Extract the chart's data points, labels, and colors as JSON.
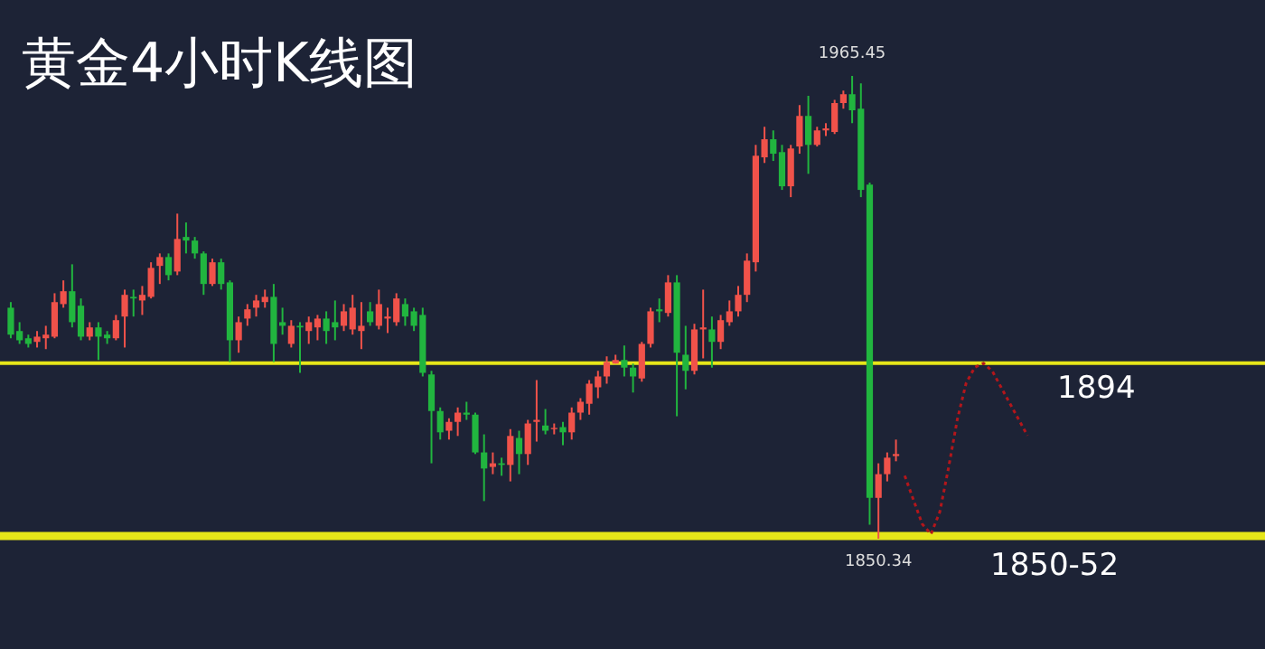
{
  "chart_data": {
    "type": "candlestick",
    "title": "黄金4小时K线图",
    "categories": [
      null,
      null,
      null,
      null,
      null,
      null,
      null,
      null,
      null,
      null,
      null,
      null,
      null,
      null,
      null,
      null,
      null,
      null,
      null,
      null,
      null,
      null,
      null,
      null,
      null,
      null,
      null,
      null,
      null,
      null,
      null,
      null,
      null,
      null,
      null,
      null,
      null,
      null,
      null,
      null,
      null,
      null,
      null,
      null,
      null,
      null,
      null,
      null,
      null,
      null,
      null,
      null,
      null,
      null,
      null,
      null,
      null,
      null,
      null,
      null,
      null,
      null,
      null,
      null,
      null,
      null,
      null,
      null,
      null,
      null,
      null,
      null,
      null,
      null,
      null,
      null,
      null,
      null,
      null,
      null,
      null,
      null,
      null,
      null,
      null,
      null,
      null,
      null,
      null,
      null,
      null,
      null,
      null,
      null,
      null,
      null,
      null,
      null,
      null,
      null,
      null,
      null,
      null,
      null,
      null,
      null,
      null,
      null,
      null,
      null,
      null,
      null,
      null,
      null,
      null,
      null,
      null
    ],
    "ohlc": [
      [
        1907.8,
        1909.2,
        1900.2,
        1901.1
      ],
      [
        1902.0,
        1904.2,
        1898.8,
        1899.7
      ],
      [
        1900.2,
        1901.1,
        1897.9,
        1898.8
      ],
      [
        1899.3,
        1902.0,
        1897.9,
        1900.6
      ],
      [
        1900.2,
        1903.3,
        1897.5,
        1901.1
      ],
      [
        1900.6,
        1911.4,
        1900.2,
        1909.2
      ],
      [
        1908.7,
        1914.6,
        1907.8,
        1911.9
      ],
      [
        1911.9,
        1918.6,
        1902.9,
        1904.2
      ],
      [
        1908.3,
        1910.1,
        1899.7,
        1900.6
      ],
      [
        1900.6,
        1904.2,
        1899.7,
        1902.9
      ],
      [
        1902.9,
        1904.2,
        1894.8,
        1900.6
      ],
      [
        1901.1,
        1902.0,
        1898.8,
        1900.2
      ],
      [
        1900.2,
        1906.0,
        1899.7,
        1904.7
      ],
      [
        1905.6,
        1912.3,
        1897.9,
        1911.0
      ],
      [
        1910.5,
        1912.3,
        1905.6,
        1910.1
      ],
      [
        1909.6,
        1913.2,
        1906.0,
        1911.0
      ],
      [
        1910.5,
        1919.1,
        1910.1,
        1917.7
      ],
      [
        1918.2,
        1921.3,
        1913.7,
        1920.4
      ],
      [
        1920.4,
        1921.3,
        1914.6,
        1915.9
      ],
      [
        1916.8,
        1931.2,
        1915.9,
        1924.9
      ],
      [
        1925.4,
        1929.0,
        1921.3,
        1924.5
      ],
      [
        1924.5,
        1925.4,
        1920.0,
        1921.3
      ],
      [
        1921.3,
        1921.8,
        1911.0,
        1913.7
      ],
      [
        1913.7,
        1920.0,
        1913.2,
        1919.1
      ],
      [
        1919.1,
        1920.0,
        1912.3,
        1913.7
      ],
      [
        1914.1,
        1914.6,
        1894.3,
        1899.7
      ],
      [
        1899.7,
        1905.6,
        1896.6,
        1904.2
      ],
      [
        1905.1,
        1908.7,
        1903.3,
        1907.4
      ],
      [
        1907.8,
        1911.0,
        1905.6,
        1909.6
      ],
      [
        1909.2,
        1912.3,
        1907.8,
        1910.5
      ],
      [
        1910.5,
        1913.7,
        1894.3,
        1898.8
      ],
      [
        1904.2,
        1907.8,
        1901.1,
        1903.3
      ],
      [
        1898.8,
        1904.7,
        1897.9,
        1903.3
      ],
      [
        1903.3,
        1904.2,
        1891.6,
        1902.9
      ],
      [
        1902.0,
        1905.6,
        1898.8,
        1904.2
      ],
      [
        1902.9,
        1906.0,
        1899.7,
        1905.1
      ],
      [
        1905.1,
        1906.9,
        1898.8,
        1902.0
      ],
      [
        1904.2,
        1909.6,
        1899.7,
        1902.9
      ],
      [
        1903.3,
        1908.7,
        1902.0,
        1906.9
      ],
      [
        1902.4,
        1911.0,
        1901.1,
        1907.8
      ],
      [
        1902.0,
        1909.2,
        1897.5,
        1903.3
      ],
      [
        1906.9,
        1909.2,
        1903.3,
        1904.2
      ],
      [
        1903.3,
        1912.3,
        1902.4,
        1908.7
      ],
      [
        1905.1,
        1907.8,
        1901.5,
        1905.6
      ],
      [
        1904.2,
        1911.4,
        1903.3,
        1910.1
      ],
      [
        1908.7,
        1910.1,
        1903.3,
        1905.6
      ],
      [
        1906.9,
        1907.8,
        1902.0,
        1903.3
      ],
      [
        1906.0,
        1907.8,
        1890.7,
        1891.6
      ],
      [
        1891.2,
        1892.1,
        1869.1,
        1882.1
      ],
      [
        1882.1,
        1883.0,
        1875.0,
        1876.8
      ],
      [
        1877.2,
        1880.3,
        1875.0,
        1879.4
      ],
      [
        1879.4,
        1883.0,
        1875.9,
        1881.7
      ],
      [
        1881.7,
        1884.4,
        1879.9,
        1881.2
      ],
      [
        1881.2,
        1881.7,
        1871.4,
        1871.8
      ],
      [
        1871.8,
        1876.3,
        1859.7,
        1867.8
      ],
      [
        1868.2,
        1871.8,
        1866.4,
        1869.1
      ],
      [
        1869.1,
        1870.5,
        1866.0,
        1868.7
      ],
      [
        1868.7,
        1877.6,
        1864.6,
        1875.9
      ],
      [
        1875.4,
        1877.2,
        1866.4,
        1871.4
      ],
      [
        1871.4,
        1879.9,
        1868.7,
        1879.0
      ],
      [
        1879.4,
        1889.8,
        1874.5,
        1879.9
      ],
      [
        1878.5,
        1882.6,
        1876.3,
        1877.2
      ],
      [
        1877.6,
        1879.0,
        1876.3,
        1877.9
      ],
      [
        1878.1,
        1879.4,
        1873.6,
        1876.8
      ],
      [
        1876.8,
        1883.0,
        1875.0,
        1881.7
      ],
      [
        1881.7,
        1885.3,
        1879.9,
        1884.4
      ],
      [
        1883.9,
        1889.8,
        1881.2,
        1888.9
      ],
      [
        1888.0,
        1892.1,
        1885.3,
        1890.7
      ],
      [
        1890.7,
        1895.7,
        1888.9,
        1894.3
      ],
      [
        1893.9,
        1896.1,
        1893.9,
        1894.8
      ],
      [
        1894.8,
        1898.4,
        1890.7,
        1892.9
      ],
      [
        1892.9,
        1893.9,
        1886.7,
        1890.7
      ],
      [
        1890.2,
        1899.3,
        1889.4,
        1898.8
      ],
      [
        1898.8,
        1907.8,
        1897.9,
        1906.9
      ],
      [
        1907.4,
        1910.1,
        1904.2,
        1906.9
      ],
      [
        1906.5,
        1915.9,
        1905.6,
        1914.1
      ],
      [
        1914.1,
        1915.9,
        1880.8,
        1896.6
      ],
      [
        1896.1,
        1903.3,
        1887.5,
        1892.1
      ],
      [
        1892.1,
        1903.8,
        1891.2,
        1902.4
      ],
      [
        1902.4,
        1912.3,
        1895.2,
        1902.9
      ],
      [
        1902.4,
        1905.6,
        1892.9,
        1899.3
      ],
      [
        1899.3,
        1906.0,
        1897.5,
        1904.7
      ],
      [
        1904.2,
        1909.6,
        1903.3,
        1906.9
      ],
      [
        1906.9,
        1913.2,
        1905.6,
        1911.0
      ],
      [
        1911.0,
        1921.3,
        1909.2,
        1919.5
      ],
      [
        1919.1,
        1948.3,
        1916.8,
        1945.6
      ],
      [
        1945.2,
        1952.8,
        1943.8,
        1949.7
      ],
      [
        1949.7,
        1951.9,
        1944.3,
        1946.1
      ],
      [
        1946.5,
        1948.3,
        1937.1,
        1938.0
      ],
      [
        1938.0,
        1948.3,
        1935.3,
        1947.4
      ],
      [
        1947.9,
        1958.2,
        1946.1,
        1955.5
      ],
      [
        1955.5,
        1960.5,
        1941.1,
        1948.3
      ],
      [
        1948.3,
        1952.8,
        1947.9,
        1951.9
      ],
      [
        1951.9,
        1953.7,
        1950.5,
        1952.4
      ],
      [
        1951.5,
        1959.5,
        1951.0,
        1958.7
      ],
      [
        1958.7,
        1961.8,
        1957.3,
        1960.9
      ],
      [
        1960.9,
        1965.45,
        1953.7,
        1956.9
      ],
      [
        1957.3,
        1963.6,
        1935.3,
        1937.1
      ],
      [
        1938.4,
        1938.9,
        1853.8,
        1860.5
      ],
      [
        1860.5,
        1869.1,
        1850.34,
        1866.4
      ],
      [
        1866.4,
        1871.8,
        1864.6,
        1870.5
      ],
      [
        1870.9,
        1875.0,
        1869.6,
        1871.4
      ],
      null,
      null,
      null,
      null,
      null,
      null,
      null,
      null,
      null,
      null,
      null,
      null,
      null,
      null,
      null
    ],
    "series": [
      {
        "type": "line",
        "color": "#b3161b",
        "line_style": "dotted",
        "values": [
          null,
          null,
          null,
          null,
          null,
          null,
          null,
          null,
          null,
          null,
          null,
          null,
          null,
          null,
          null,
          null,
          null,
          null,
          null,
          null,
          null,
          null,
          null,
          null,
          null,
          null,
          null,
          null,
          null,
          null,
          null,
          null,
          null,
          null,
          null,
          null,
          null,
          null,
          null,
          null,
          null,
          null,
          null,
          null,
          null,
          null,
          null,
          null,
          null,
          null,
          null,
          null,
          null,
          null,
          null,
          null,
          null,
          null,
          null,
          null,
          null,
          null,
          null,
          null,
          null,
          null,
          null,
          null,
          null,
          null,
          null,
          null,
          null,
          null,
          null,
          null,
          null,
          null,
          null,
          null,
          null,
          null,
          null,
          null,
          null,
          null,
          null,
          null,
          null,
          null,
          null,
          null,
          null,
          null,
          null,
          null,
          null,
          null,
          null,
          null,
          null,
          null,
          1866,
          1860,
          1854,
          1851.5,
          1857,
          1868,
          1880,
          1889,
          1893,
          1894,
          1892,
          1888,
          1884,
          1880,
          1876
        ]
      }
    ],
    "colors": [
      "#21b53f",
      "#21b53f",
      "#21b53f",
      "#f0524a",
      "#f0524a",
      "#f0524a",
      "#f0524a",
      "#21b53f",
      "#21b53f",
      "#f0524a",
      "#21b53f",
      "#21b53f",
      "#f0524a",
      "#f0524a",
      "#21b53f",
      "#f0524a",
      "#f0524a",
      "#f0524a",
      "#21b53f",
      "#f0524a",
      "#21b53f",
      "#21b53f",
      "#21b53f",
      "#f0524a",
      "#21b53f",
      "#21b53f",
      "#f0524a",
      "#f0524a",
      "#f0524a",
      "#f0524a",
      "#21b53f",
      "#21b53f",
      "#f0524a",
      "#21b53f",
      "#f0524a",
      "#f0524a",
      "#21b53f",
      "#21b53f",
      "#f0524a",
      "#f0524a",
      "#f0524a",
      "#21b53f",
      "#f0524a",
      "#f0524a",
      "#f0524a",
      "#21b53f",
      "#21b53f",
      "#21b53f",
      "#21b53f",
      "#21b53f",
      "#f0524a",
      "#f0524a",
      "#21b53f",
      "#21b53f",
      "#21b53f",
      "#f0524a",
      "#21b53f",
      "#f0524a",
      "#21b53f",
      "#f0524a",
      "#f0524a",
      "#21b53f",
      "#f0524a",
      "#21b53f",
      "#f0524a",
      "#f0524a",
      "#f0524a",
      "#f0524a",
      "#f0524a",
      "#f0524a",
      "#21b53f",
      "#21b53f",
      "#f0524a",
      "#f0524a",
      "#21b53f",
      "#f0524a",
      "#21b53f",
      "#21b53f",
      "#f0524a",
      "#f0524a",
      "#21b53f",
      "#f0524a",
      "#f0524a",
      "#f0524a",
      "#f0524a",
      "#f0524a",
      "#f0524a",
      "#21b53f",
      "#21b53f",
      "#f0524a",
      "#f0524a",
      "#21b53f",
      "#f0524a",
      "#f0524a",
      "#f0524a",
      "#f0524a",
      "#21b53f",
      "#21b53f",
      "#21b53f",
      "#f0524a",
      "#f0524a",
      "#f0524a",
      null,
      null,
      null,
      null,
      null,
      null,
      null,
      null,
      null,
      null,
      null,
      null,
      null,
      null,
      null
    ],
    "ref_lines": [
      {
        "axis": "y",
        "value": 1894,
        "label": "1894",
        "color": "#e6e619"
      }
    ],
    "bands": [
      {
        "axis": "y",
        "from": 1850,
        "to": 1852,
        "label": "1850-52",
        "color": "#e6e619"
      }
    ],
    "annotations": [
      {
        "text": "1965.45",
        "y": 1965.45
      },
      {
        "text": "1850.34",
        "y": 1850.34
      }
    ]
  }
}
